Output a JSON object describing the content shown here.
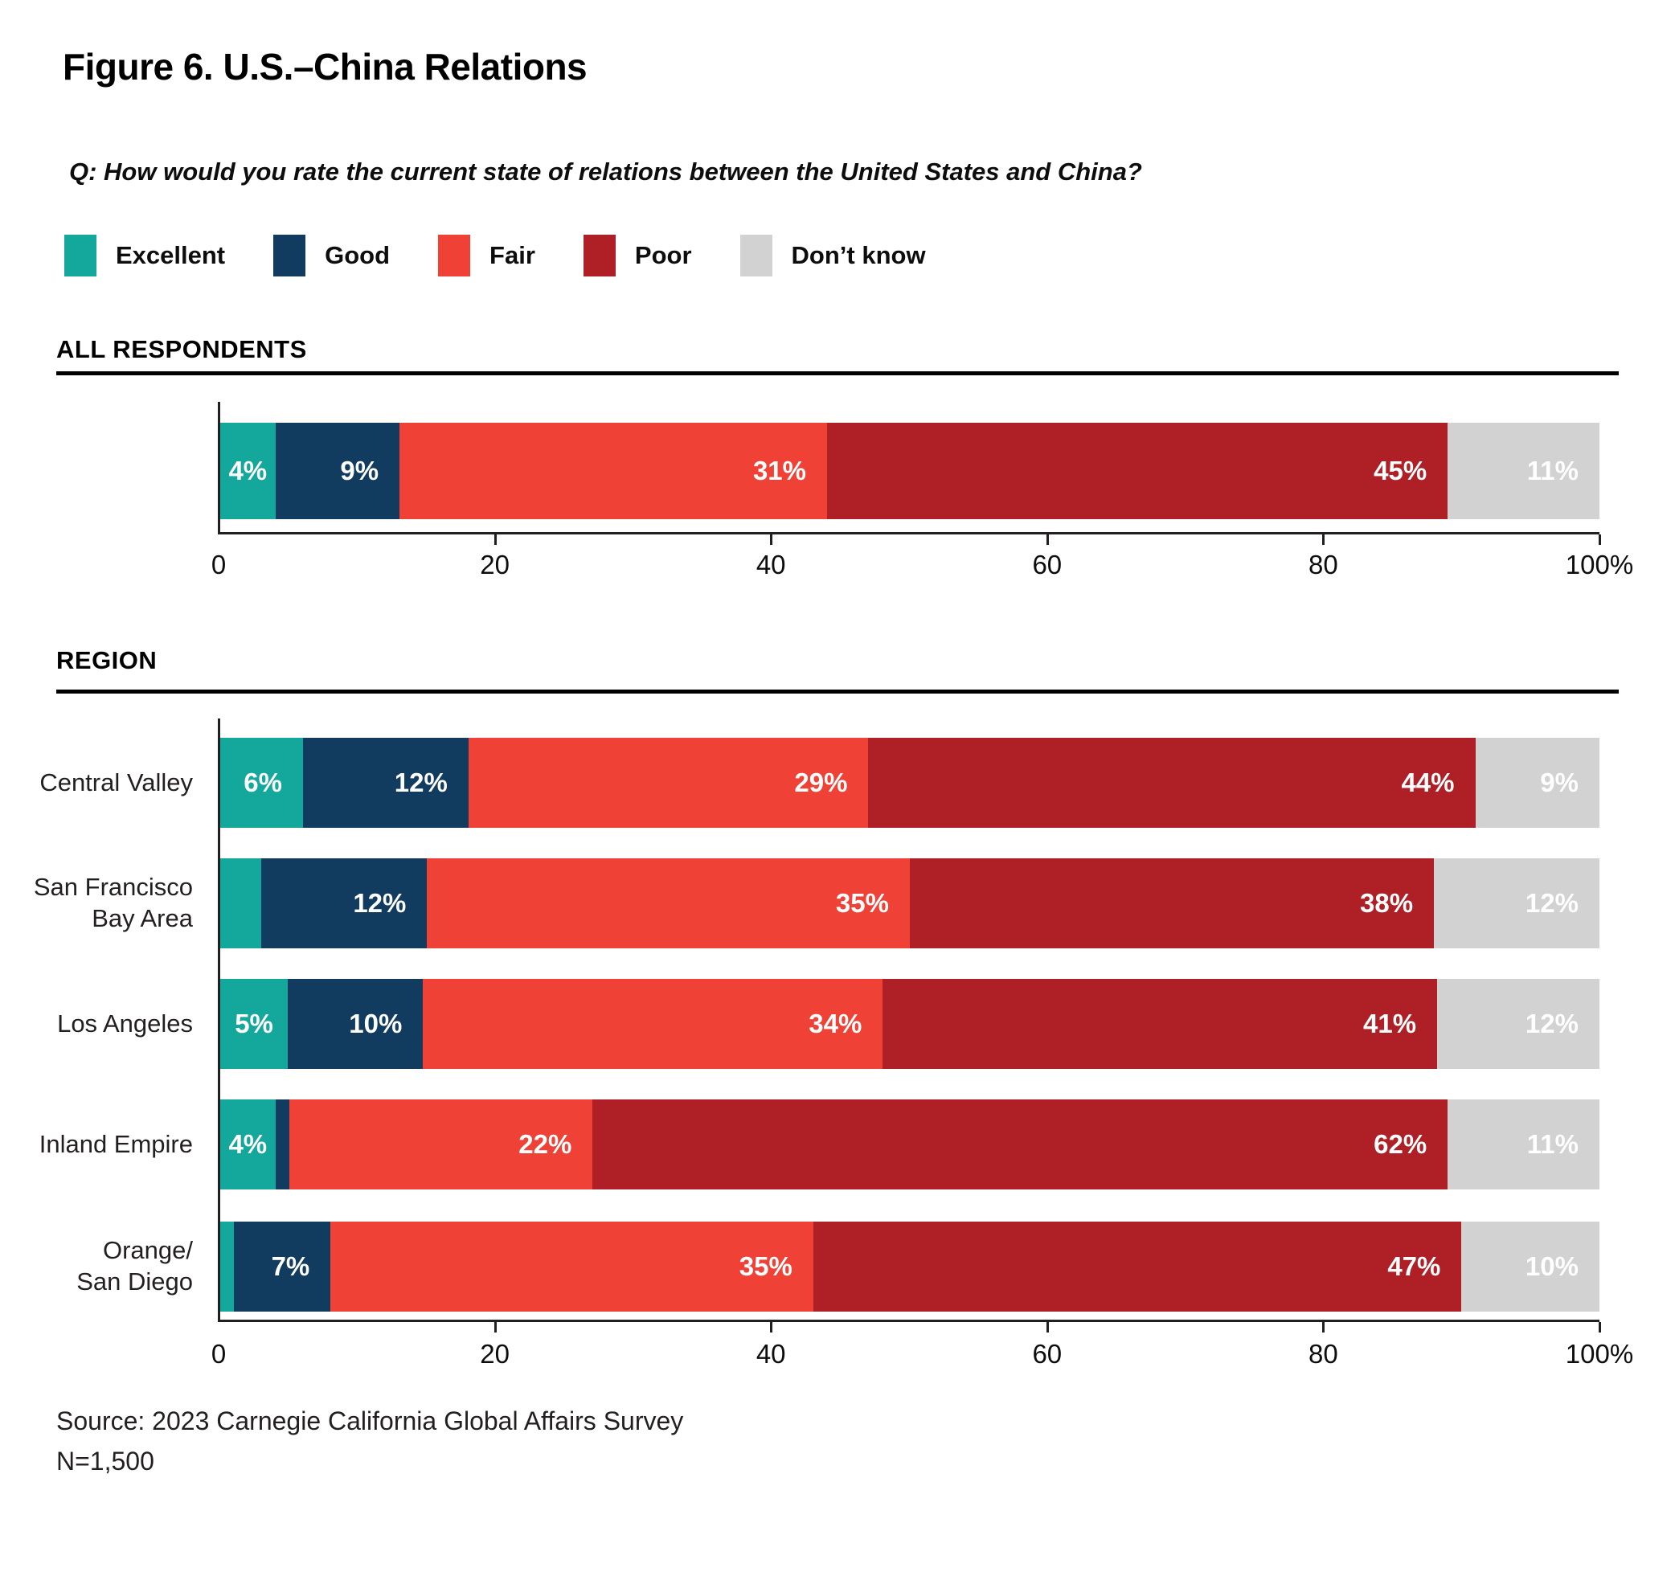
{
  "title": "Figure 6. U.S.–China Relations",
  "question": "Q: How would you rate the current state of relations between the United States and China?",
  "legend": {
    "items": [
      {
        "label": "Excellent",
        "color": "#14A79B"
      },
      {
        "label": "Good",
        "color": "#123C5F"
      },
      {
        "label": "Fair",
        "color": "#EF4136"
      },
      {
        "label": "Poor",
        "color": "#AF1F26"
      },
      {
        "label": "Don’t know",
        "color": "#D2D2D2"
      }
    ]
  },
  "source": {
    "line1": "Source: 2023 Carnegie California Global Affairs Survey",
    "line2": "N=1,500"
  },
  "chart_data": {
    "type": "bar",
    "orientation": "horizontal",
    "stacked": true,
    "legend_position": "top",
    "series": [
      "Excellent",
      "Good",
      "Fair",
      "Poor",
      "Don't know"
    ],
    "colors": [
      "#14A79B",
      "#123C5F",
      "#EF4136",
      "#AF1F26",
      "#D2D2D2"
    ],
    "value_label_color": "#ffffff",
    "x_axis": {
      "min": 0,
      "max": 100,
      "tick_values": [
        0,
        20,
        40,
        60,
        80,
        100
      ],
      "tick_labels": [
        "0",
        "20",
        "40",
        "60",
        "80",
        "100%"
      ],
      "tick_marks": [
        20,
        40,
        60,
        80,
        100
      ]
    },
    "sections": [
      {
        "header": "ALL RESPONDENTS",
        "rows": [
          {
            "label": "",
            "values": [
              4,
              9,
              31,
              45,
              11
            ],
            "value_labels": [
              "4%",
              "9%",
              "31%",
              "45%",
              "11%"
            ]
          }
        ]
      },
      {
        "header": "REGION",
        "rows": [
          {
            "label": "Central Valley",
            "values": [
              6,
              12,
              29,
              44,
              9
            ],
            "value_labels": [
              "6%",
              "12%",
              "29%",
              "44%",
              "9%"
            ]
          },
          {
            "label": "San Francisco\nBay Area",
            "values": [
              3,
              12,
              35,
              38,
              12
            ],
            "value_labels": [
              "",
              "12%",
              "35%",
              "38%",
              "12%"
            ]
          },
          {
            "label": "Los Angeles",
            "values": [
              5,
              10,
              34,
              41,
              12
            ],
            "value_labels": [
              "5%",
              "10%",
              "34%",
              "41%",
              "12%"
            ]
          },
          {
            "label": "Inland Empire",
            "values": [
              4,
              1,
              22,
              62,
              11
            ],
            "value_labels": [
              "4%",
              "",
              "22%",
              "62%",
              "11%"
            ]
          },
          {
            "label": "Orange/\nSan Diego",
            "values": [
              1,
              7,
              35,
              47,
              10
            ],
            "value_labels": [
              "",
              "7%",
              "35%",
              "47%",
              "10%"
            ]
          }
        ]
      }
    ]
  }
}
